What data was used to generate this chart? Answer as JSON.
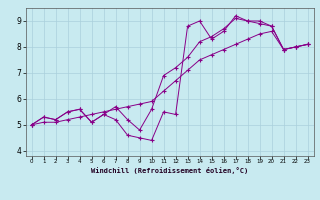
{
  "xlabel": "Windchill (Refroidissement éolien,°C)",
  "background_color": "#c8eaf0",
  "grid_color": "#aad0dc",
  "line_color": "#880088",
  "xlim": [
    -0.5,
    23.5
  ],
  "ylim": [
    3.8,
    9.5
  ],
  "xticks": [
    0,
    1,
    2,
    3,
    4,
    5,
    6,
    7,
    8,
    9,
    10,
    11,
    12,
    13,
    14,
    15,
    16,
    17,
    18,
    19,
    20,
    21,
    22,
    23
  ],
  "yticks": [
    4,
    5,
    6,
    7,
    8,
    9
  ],
  "series1_x": [
    0,
    1,
    2,
    3,
    4,
    5,
    6,
    7,
    8,
    9,
    10,
    11,
    12,
    13,
    14,
    15,
    16,
    17,
    18,
    19,
    20,
    21,
    22,
    23
  ],
  "series1_y": [
    5.0,
    5.3,
    5.2,
    5.5,
    5.6,
    5.1,
    5.4,
    5.2,
    4.6,
    4.5,
    4.4,
    5.5,
    5.4,
    8.8,
    9.0,
    8.3,
    8.6,
    9.2,
    9.0,
    9.0,
    8.8,
    7.9,
    8.0,
    8.1
  ],
  "series2_x": [
    0,
    1,
    2,
    3,
    4,
    5,
    6,
    7,
    8,
    9,
    10,
    11,
    12,
    13,
    14,
    15,
    16,
    17,
    18,
    19,
    20,
    21,
    22,
    23
  ],
  "series2_y": [
    5.0,
    5.3,
    5.2,
    5.5,
    5.6,
    5.1,
    5.4,
    5.7,
    5.2,
    4.8,
    5.6,
    6.9,
    7.2,
    7.6,
    8.2,
    8.4,
    8.7,
    9.1,
    9.0,
    8.9,
    8.8,
    7.9,
    8.0,
    8.1
  ],
  "series3_x": [
    0,
    1,
    2,
    3,
    4,
    5,
    6,
    7,
    8,
    9,
    10,
    11,
    12,
    13,
    14,
    15,
    16,
    17,
    18,
    19,
    20,
    21,
    22,
    23
  ],
  "series3_y": [
    5.0,
    5.1,
    5.1,
    5.2,
    5.3,
    5.4,
    5.5,
    5.6,
    5.7,
    5.8,
    5.9,
    6.3,
    6.7,
    7.1,
    7.5,
    7.7,
    7.9,
    8.1,
    8.3,
    8.5,
    8.6,
    7.9,
    8.0,
    8.1
  ]
}
